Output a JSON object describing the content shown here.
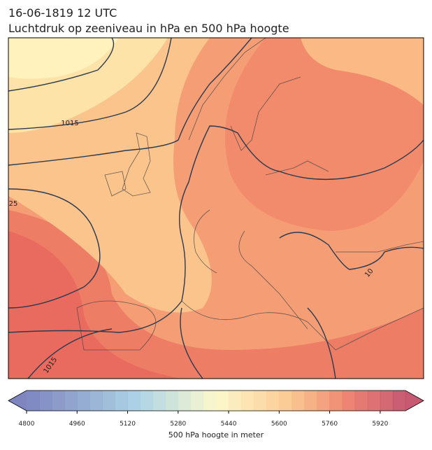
{
  "header": {
    "title": "16-06-1819 12 UTC",
    "subtitle": "Luchtdruk op zeeniveau in hPa en 500 hPa hoogte"
  },
  "map": {
    "contour_labels": [
      "1015",
      "25",
      "1015",
      "10"
    ]
  },
  "colorbar": {
    "label": "500 hPa hoogte in meter",
    "lim": [
      4800,
      6000
    ],
    "ticks": [
      4800,
      4960,
      5120,
      5280,
      5440,
      5600,
      5760,
      5920
    ]
  }
}
